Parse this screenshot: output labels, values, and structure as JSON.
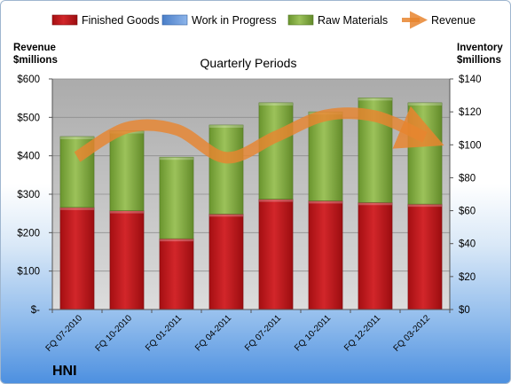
{
  "chart_data": {
    "type": "bar",
    "stacked": true,
    "title": "Quarterly Periods",
    "brand": "HNI",
    "categories": [
      "FQ 07-2010",
      "FQ 10-2010",
      "FQ 01-2011",
      "FQ 04-2011",
      "FQ 07-2011",
      "FQ 10-2011",
      "FQ 12-2011",
      "FQ 03-2012"
    ],
    "left_axis": {
      "label_line1": "Revenue",
      "label_line2": "$millions",
      "ylim": [
        0,
        600
      ],
      "ticks": [
        0,
        100,
        200,
        300,
        400,
        500,
        600
      ],
      "tick_labels": [
        "$-",
        "$100",
        "$200",
        "$300",
        "$400",
        "$500",
        "$600"
      ]
    },
    "right_axis": {
      "label_line1": "Inventory",
      "label_line2": "$millions",
      "ylim": [
        0,
        140
      ],
      "ticks": [
        0,
        20,
        40,
        60,
        80,
        100,
        120,
        140
      ],
      "tick_labels": [
        "$0",
        "$20",
        "$40",
        "$60",
        "$80",
        "$100",
        "$120",
        "$140"
      ]
    },
    "series": [
      {
        "name": "Finished Goods",
        "axis": "right",
        "kind": "bar",
        "color": "#c0191c",
        "values": [
          62,
          60,
          43,
          58,
          67,
          66,
          65,
          64
        ]
      },
      {
        "name": "Work in Progress",
        "axis": "right",
        "kind": "bar",
        "color": "#5b8fd6",
        "values": [
          0,
          0,
          0,
          0,
          0,
          0,
          0,
          0
        ]
      },
      {
        "name": "Raw Materials",
        "axis": "right",
        "kind": "bar",
        "color": "#7aa83a",
        "values": [
          43,
          48.5,
          49.5,
          54,
          58.5,
          54,
          63.5,
          61.5
        ]
      },
      {
        "name": "Revenue",
        "axis": "left",
        "kind": "line",
        "color": "#e8852f",
        "values": [
          397,
          473,
          468,
          395,
          450,
          505,
          503,
          448
        ]
      }
    ],
    "grid": true,
    "legend_position": "top"
  }
}
